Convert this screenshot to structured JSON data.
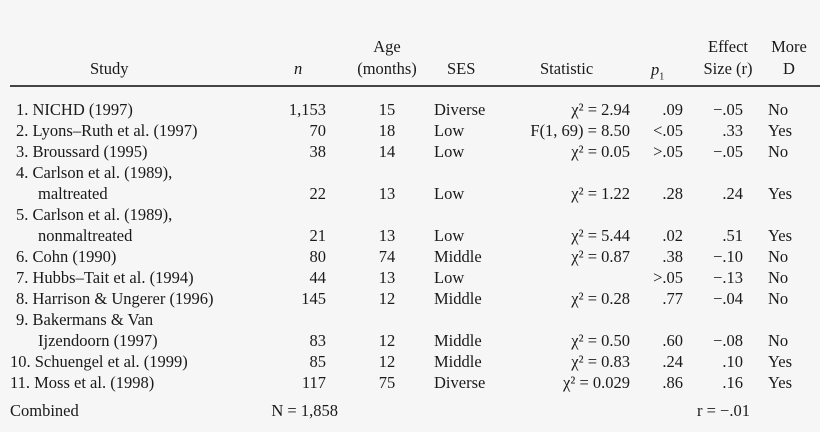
{
  "header": {
    "study": "Study",
    "n": "n",
    "age_line1": "Age",
    "age_line2": "(months)",
    "ses": "SES",
    "statistic": "Statistic",
    "p": "p",
    "p_sub": "1",
    "effect_line1": "Effect",
    "effect_line2": "Size (r)",
    "more_line1": "More",
    "more_line2": "D"
  },
  "rows": [
    {
      "study": "1. NICHD (1997)",
      "n": "1,153",
      "age": "15",
      "ses": "Diverse",
      "statistic": "χ² = 2.94",
      "p": ".09",
      "effect": "−.05",
      "more_d": "No"
    },
    {
      "study": "2. Lyons–Ruth et al. (1997)",
      "n": "70",
      "age": "18",
      "ses": "Low",
      "statistic": "F(1, 69) = 8.50",
      "p": "<.05",
      "effect": ".33",
      "more_d": "Yes"
    },
    {
      "study": "3. Broussard (1995)",
      "n": "38",
      "age": "14",
      "ses": "Low",
      "statistic": "χ² = 0.05",
      "p": ">.05",
      "effect": "−.05",
      "more_d": "No"
    },
    {
      "study": "4. Carlson et al. (1989),",
      "study_cont": "maltreated",
      "n": "22",
      "age": "13",
      "ses": "Low",
      "statistic": "χ² = 1.22",
      "p": ".28",
      "effect": ".24",
      "more_d": "Yes"
    },
    {
      "study": "5. Carlson et al. (1989),",
      "study_cont": "nonmaltreated",
      "n": "21",
      "age": "13",
      "ses": "Low",
      "statistic": "χ² = 5.44",
      "p": ".02",
      "effect": ".51",
      "more_d": "Yes"
    },
    {
      "study": "6. Cohn (1990)",
      "n": "80",
      "age": "74",
      "ses": "Middle",
      "statistic": "χ² = 0.87",
      "p": ".38",
      "effect": "−.10",
      "more_d": "No"
    },
    {
      "study": "7. Hubbs–Tait et al. (1994)",
      "n": "44",
      "age": "13",
      "ses": "Low",
      "statistic": "",
      "p": ">.05",
      "effect": "−.13",
      "more_d": "No"
    },
    {
      "study": "8. Harrison & Ungerer (1996)",
      "n": "145",
      "age": "12",
      "ses": "Middle",
      "statistic": "χ² = 0.28",
      "p": ".77",
      "effect": "−.04",
      "more_d": "No"
    },
    {
      "study": "9. Bakermans & Van",
      "study_cont": "Ijzendoorn (1997)",
      "n": "83",
      "age": "12",
      "ses": "Middle",
      "statistic": "χ² = 0.50",
      "p": ".60",
      "effect": "−.08",
      "more_d": "No"
    },
    {
      "study": "10. Schuengel et al. (1999)",
      "n": "85",
      "age": "12",
      "ses": "Middle",
      "statistic": "χ² = 0.83",
      "p": ".24",
      "effect": ".10",
      "more_d": "Yes"
    },
    {
      "study": "11. Moss et al. (1998)",
      "n": "117",
      "age": "75",
      "ses": "Diverse",
      "statistic": "χ² = 0.029",
      "p": ".86",
      "effect": ".16",
      "more_d": "Yes"
    }
  ],
  "combined": {
    "label": "Combined",
    "n": "N = 1,858",
    "effect": "r = −.01"
  }
}
